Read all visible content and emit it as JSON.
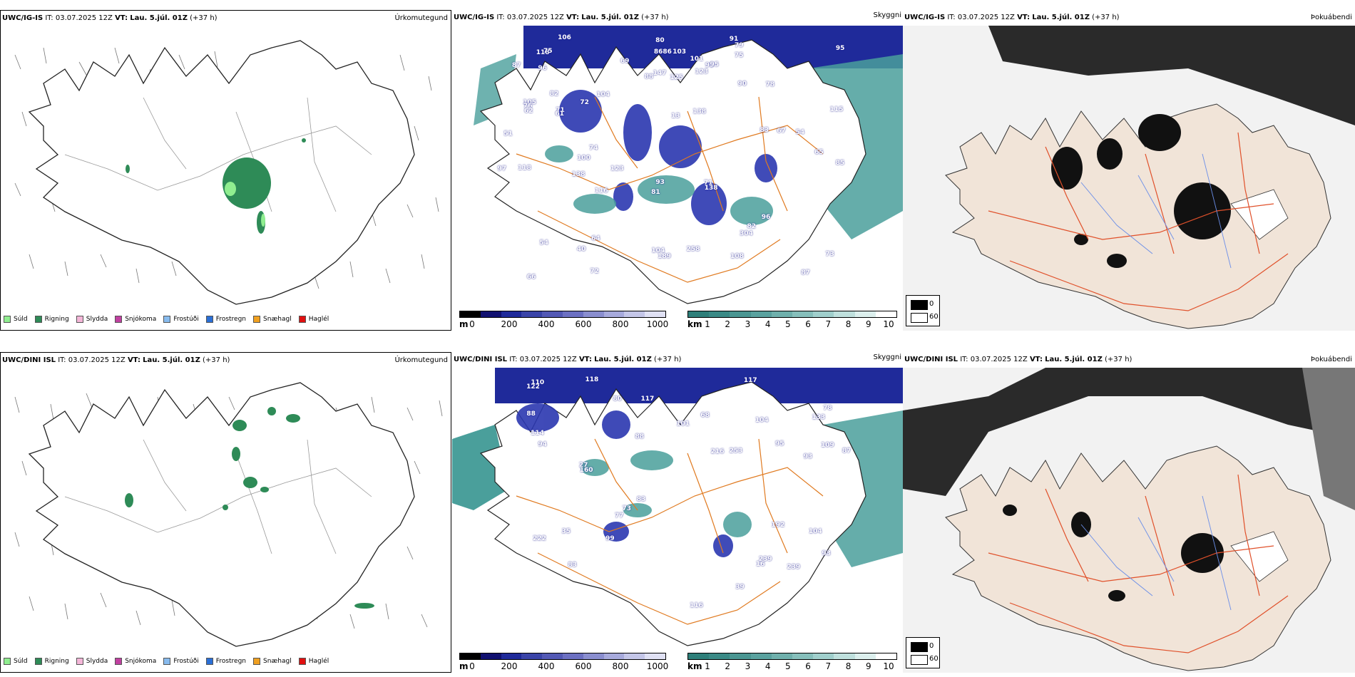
{
  "panels": [
    {
      "model": "UWC/IG-IS",
      "it": "IT: 03.07.2025 12Z",
      "vt_label": "VT:",
      "vt": "Lau. 5.júl. 01Z",
      "lead": "(+37 h)",
      "title": "Úrkomutegund"
    },
    {
      "model": "UWC/IG-IS",
      "it": "IT: 03.07.2025 12Z",
      "vt_label": "VT:",
      "vt": "Lau. 5.júl. 01Z",
      "lead": "(+37 h)",
      "title": "Skyggni"
    },
    {
      "model": "UWC/IG-IS",
      "it": "IT: 03.07.2025 12Z",
      "vt_label": "VT:",
      "vt": "Lau. 5.júl. 01Z",
      "lead": "(+37 h)",
      "title": "Þokuábendi"
    },
    {
      "model": "UWC/DINI ISL",
      "it": "IT: 03.07.2025 12Z",
      "vt_label": "VT:",
      "vt": "Lau. 5.júl. 01Z",
      "lead": "(+37 h)",
      "title": "Úrkomutegund"
    },
    {
      "model": "UWC/DINI ISL",
      "it": "IT: 03.07.2025 12Z",
      "vt_label": "VT:",
      "vt": "Lau. 5.júl. 01Z",
      "lead": "(+37 h)",
      "title": "Skyggni"
    },
    {
      "model": "UWC/DINI ISL",
      "it": "IT: 03.07.2025 12Z",
      "vt_label": "VT:",
      "vt": "Lau. 5.júl. 01Z",
      "lead": "(+37 h)",
      "title": "Þokuábendi"
    }
  ],
  "precip_legend": [
    {
      "label": "Súld",
      "color": "#90ee90"
    },
    {
      "label": "Rigning",
      "color": "#2e8b57"
    },
    {
      "label": "Slydda",
      "color": "#f4b6d8"
    },
    {
      "label": "Snjókoma",
      "color": "#c040a0"
    },
    {
      "label": "Frostúði",
      "color": "#88bbee"
    },
    {
      "label": "Frostregn",
      "color": "#2a6fd6"
    },
    {
      "label": "Snæhagl",
      "color": "#f0a020"
    },
    {
      "label": "Haglél",
      "color": "#e01010"
    }
  ],
  "cloudbase_bar": {
    "unit": "m",
    "ticks": [
      "0",
      "200",
      "400",
      "600",
      "800",
      "1000"
    ]
  },
  "visibility_bar": {
    "unit": "km",
    "ticks": [
      "1",
      "2",
      "3",
      "4",
      "5",
      "6",
      "7",
      "8",
      "9",
      "10"
    ]
  },
  "fog_legend": {
    "dark": "0",
    "light": "60"
  },
  "cloud_labels_top": [
    "125",
    "118",
    "147",
    "105",
    "99",
    "104",
    "91",
    "103",
    "79",
    "123",
    "106",
    "115",
    "96",
    "95",
    "88",
    "75",
    "71",
    "86",
    "101",
    "82",
    "69",
    "76",
    "72",
    "86",
    "95",
    "78",
    "75",
    "80",
    "87",
    "90",
    "85",
    "81",
    "104",
    "93",
    "74",
    "83",
    "64",
    "87",
    "73",
    "96",
    "138",
    "123",
    "138",
    "304",
    "72",
    "97",
    "71",
    "66",
    "189",
    "138",
    "54",
    "65",
    "51",
    "82",
    "108",
    "40",
    "61",
    "62",
    "258",
    "54",
    "13",
    "116",
    "118",
    "100",
    "67"
  ],
  "cloud_labels_bottom": [
    "104",
    "133",
    "94",
    "118",
    "117",
    "95",
    "114",
    "117",
    "80",
    "216",
    "122",
    "88",
    "110",
    "109",
    "88",
    "78",
    "101",
    "68",
    "83",
    "83",
    "87",
    "93",
    "77",
    "93",
    "253",
    "27",
    "239",
    "222",
    "160",
    "192",
    "116",
    "39",
    "73",
    "99",
    "104",
    "239",
    "16",
    "35"
  ]
}
